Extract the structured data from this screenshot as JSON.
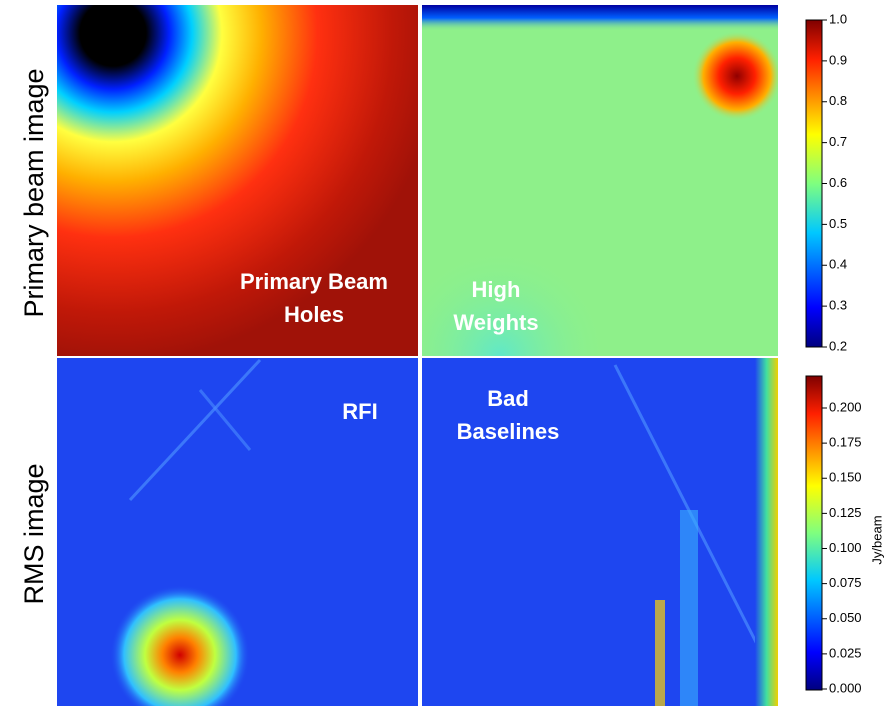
{
  "rows": [
    "Primary beam image",
    "RMS image"
  ],
  "panels": [
    {
      "lines": [
        "Primary Beam",
        "Holes"
      ]
    },
    {
      "lines": [
        "High",
        "Weights"
      ]
    },
    {
      "lines": [
        "RFI"
      ]
    },
    {
      "lines": [
        "Bad",
        "Baselines"
      ]
    }
  ],
  "colorbars": [
    {
      "ticks": [
        "1.0",
        "0.9",
        "0.8",
        "0.7",
        "0.6",
        "0.5",
        "0.4",
        "0.3",
        "0.2"
      ]
    },
    {
      "ticks": [
        "0.200",
        "0.175",
        "0.150",
        "0.125",
        "0.100",
        "0.075",
        "0.050",
        "0.025",
        "0.000"
      ],
      "label": "Jy/beam"
    }
  ]
}
